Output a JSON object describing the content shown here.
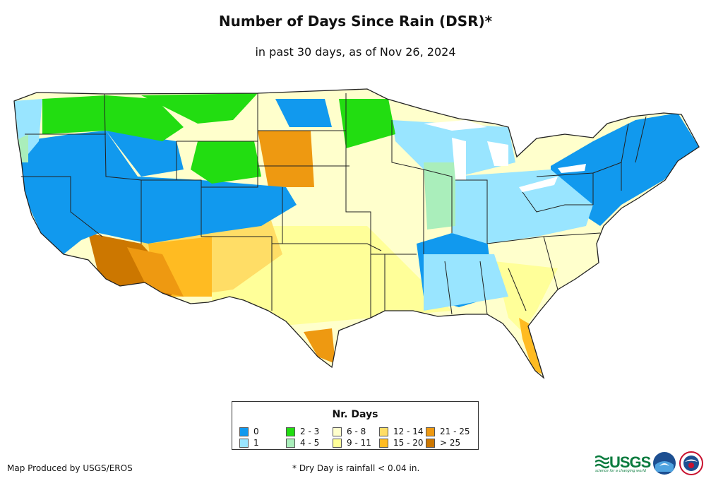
{
  "title": "Number of Days Since Rain (DSR)*",
  "subtitle": "in past 30 days, as of Nov 26, 2024",
  "legend": {
    "title": "Nr. Days",
    "items": [
      {
        "label": "0",
        "color": "#1199ee"
      },
      {
        "label": "1",
        "color": "#99e5ff"
      },
      {
        "label": "2 - 3",
        "color": "#22dd11"
      },
      {
        "label": "4 - 5",
        "color": "#aaeebb"
      },
      {
        "label": "6 - 8",
        "color": "#ffffcc"
      },
      {
        "label": "9 - 11",
        "color": "#ffff99"
      },
      {
        "label": "12 - 14",
        "color": "#ffdd66"
      },
      {
        "label": "15 - 20",
        "color": "#ffbb22"
      },
      {
        "label": "21 - 25",
        "color": "#ee9911"
      },
      {
        "label": "> 25",
        "color": "#cc7700"
      }
    ]
  },
  "footer": {
    "producer": "Map Produced by USGS/EROS",
    "note": "* Dry Day is rainfall < 0.04 in."
  },
  "logos": {
    "usgs": "USGS",
    "usgs_tagline": "science for a changing world",
    "noaa_icon": "noaa-logo-icon",
    "nws_icon": "nws-logo-icon"
  }
}
